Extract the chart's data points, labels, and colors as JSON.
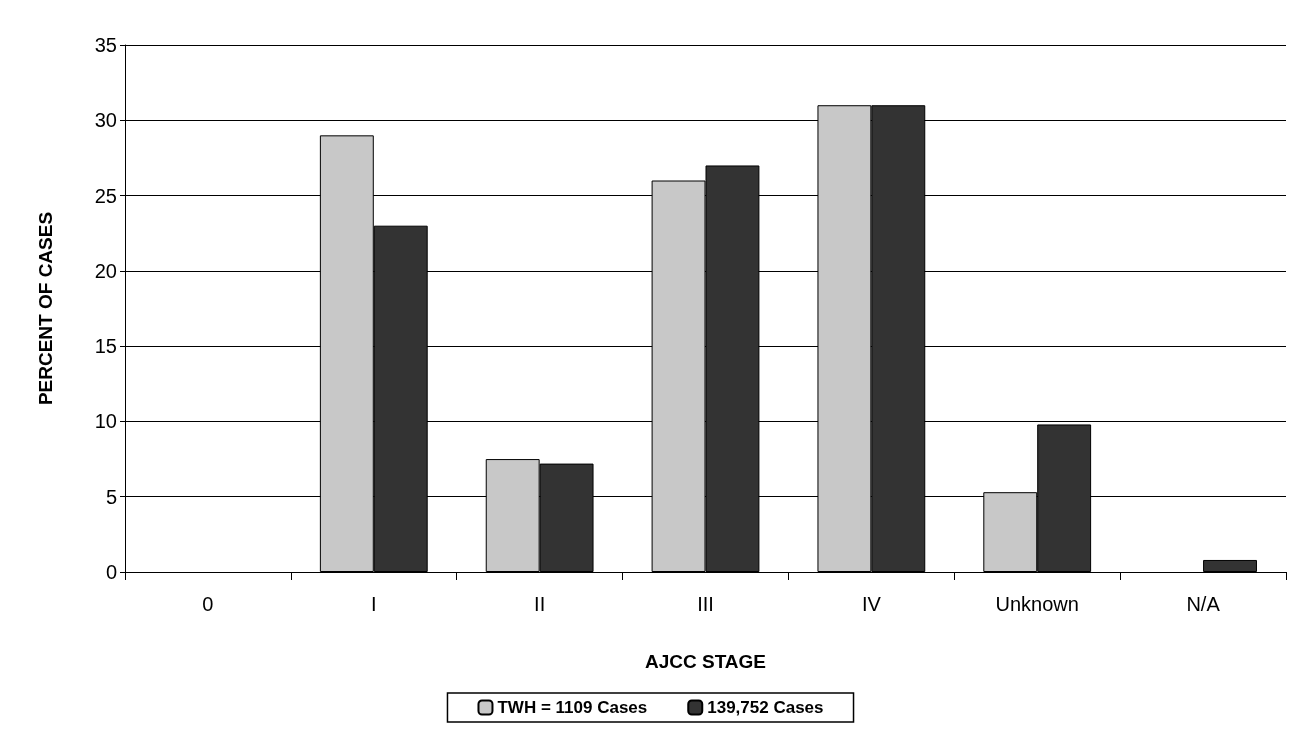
{
  "chart_data": {
    "type": "bar",
    "xlabel": "AJCC STAGE",
    "ylabel": "PERCENT OF CASES",
    "categories": [
      "0",
      "I",
      "II",
      "III",
      "IV",
      "Unknown",
      "N/A"
    ],
    "series": [
      {
        "name": "TWH = 1109 Cases",
        "color": "#c8c8c8",
        "values": [
          0,
          29,
          7.5,
          26,
          31,
          5.3,
          0
        ]
      },
      {
        "name": "139,752 Cases",
        "color": "#333333",
        "values": [
          0,
          23,
          7.2,
          27,
          31,
          9.8,
          0.8
        ]
      }
    ],
    "ylim": [
      0,
      35
    ],
    "yticks": [
      0,
      5,
      10,
      15,
      20,
      25,
      30,
      35
    ],
    "grid": "y",
    "legend": "bottom"
  }
}
